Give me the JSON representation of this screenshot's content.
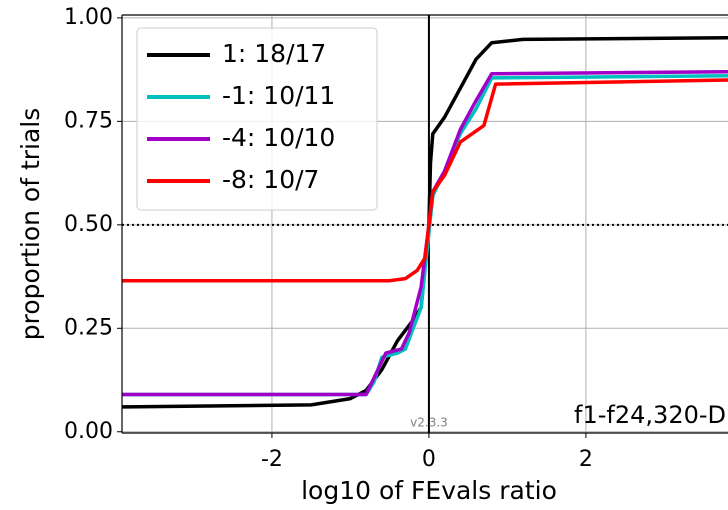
{
  "chart_data": {
    "type": "line",
    "x_label": "log10 of FEvals ratio",
    "y_label": "proportion of trials",
    "version_label": "v2.3.3",
    "annotation": "f1-f24,320-D",
    "xlim": [
      -3.91,
      3.81
    ],
    "ylim": [
      -0.003,
      1.007
    ],
    "xticks": [
      -2,
      0,
      2
    ],
    "yticks": [
      {
        "value": 0,
        "label": "0.00"
      },
      {
        "value": 0.25,
        "label": "0.25"
      },
      {
        "value": 0.5,
        "label": "0.50"
      },
      {
        "value": 0.75,
        "label": "0.75"
      },
      {
        "value": 1,
        "label": "1.00"
      }
    ],
    "grid": true,
    "hlines": [
      0.5
    ],
    "vlines": [
      0
    ],
    "legend": "upper left",
    "series": [
      {
        "name": "1: 18/17",
        "color": "#000000",
        "x": [
          -3.91,
          -1.5,
          -1,
          -0.8,
          -0.6,
          -0.4,
          -0.2,
          -0.1,
          -0.05,
          0,
          0.02,
          0.05,
          0.2,
          0.4,
          0.6,
          0.8,
          1.2,
          3.81
        ],
        "values": [
          0.06,
          0.065,
          0.08,
          0.1,
          0.15,
          0.22,
          0.27,
          0.3,
          0.4,
          0.5,
          0.65,
          0.72,
          0.76,
          0.83,
          0.9,
          0.94,
          0.948,
          0.952
        ]
      },
      {
        "name": "-1: 10/11",
        "color": "#00bfbf",
        "x": [
          -3.91,
          -0.8,
          -0.7,
          -0.6,
          -0.4,
          -0.3,
          -0.2,
          -0.1,
          0,
          0.05,
          0.2,
          0.4,
          0.6,
          0.8,
          3.81
        ],
        "values": [
          0.09,
          0.09,
          0.12,
          0.18,
          0.19,
          0.2,
          0.25,
          0.3,
          0.48,
          0.57,
          0.63,
          0.72,
          0.78,
          0.855,
          0.86
        ]
      },
      {
        "name": "-4: 10/10",
        "color": "#a000c8",
        "x": [
          -3.91,
          -0.8,
          -0.65,
          -0.55,
          -0.35,
          -0.25,
          -0.1,
          0,
          0.05,
          0.2,
          0.4,
          0.6,
          0.8,
          3.81
        ],
        "values": [
          0.09,
          0.09,
          0.15,
          0.19,
          0.2,
          0.24,
          0.35,
          0.5,
          0.58,
          0.63,
          0.73,
          0.8,
          0.865,
          0.87
        ]
      },
      {
        "name": "-8: 10/7",
        "color": "#ff0000",
        "x": [
          -3.91,
          -0.5,
          -0.3,
          -0.15,
          -0.05,
          0,
          0.05,
          0.2,
          0.4,
          0.7,
          0.85,
          3.81
        ],
        "values": [
          0.365,
          0.365,
          0.37,
          0.39,
          0.42,
          0.5,
          0.58,
          0.62,
          0.7,
          0.74,
          0.84,
          0.85
        ]
      }
    ]
  }
}
